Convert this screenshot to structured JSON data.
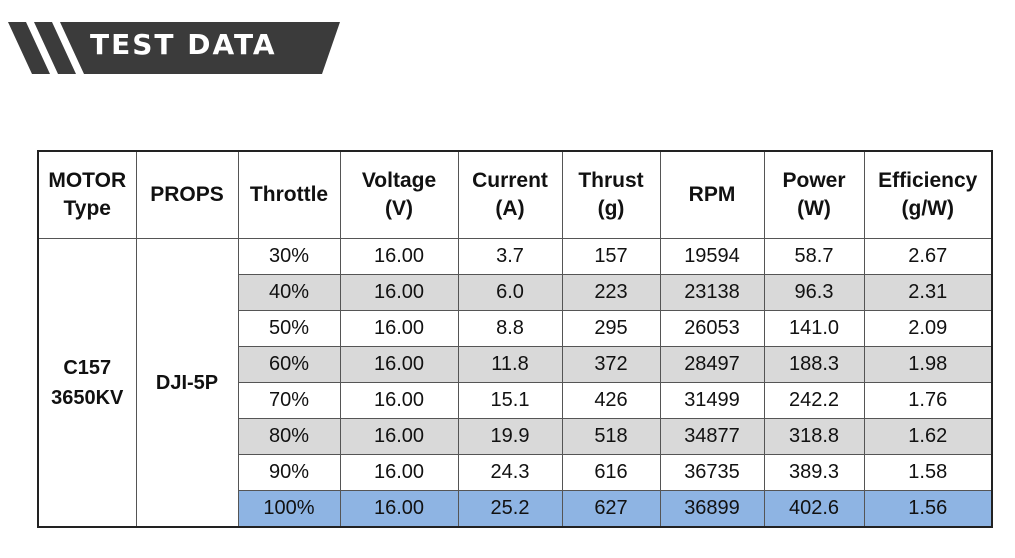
{
  "banner": {
    "title": "TEST DATA"
  },
  "table": {
    "headers": [
      [
        "MOTOR",
        "Type"
      ],
      [
        "PROPS"
      ],
      [
        "Throttle"
      ],
      [
        "Voltage",
        "(V)"
      ],
      [
        "Current",
        "(A)"
      ],
      [
        "Thrust",
        "(g)"
      ],
      [
        "RPM"
      ],
      [
        "Power",
        "(W)"
      ],
      [
        "Efficiency",
        "(g/W)"
      ]
    ],
    "motor": [
      "C157",
      "3650KV"
    ],
    "props": "DJI-5P",
    "rows": [
      [
        "30%",
        "16.00",
        "3.7",
        "157",
        "19594",
        "58.7",
        "2.67"
      ],
      [
        "40%",
        "16.00",
        "6.0",
        "223",
        "23138",
        "96.3",
        "2.31"
      ],
      [
        "50%",
        "16.00",
        "8.8",
        "295",
        "26053",
        "141.0",
        "2.09"
      ],
      [
        "60%",
        "16.00",
        "11.8",
        "372",
        "28497",
        "188.3",
        "1.98"
      ],
      [
        "70%",
        "16.00",
        "15.1",
        "426",
        "31499",
        "242.2",
        "1.76"
      ],
      [
        "80%",
        "16.00",
        "19.9",
        "518",
        "34877",
        "318.8",
        "1.62"
      ],
      [
        "90%",
        "16.00",
        "24.3",
        "616",
        "36735",
        "389.3",
        "1.58"
      ],
      [
        "100%",
        "16.00",
        "25.2",
        "627",
        "36899",
        "402.6",
        "1.56"
      ]
    ],
    "shaded_rows": [
      1,
      3,
      5
    ],
    "highlight_row": 7
  },
  "colors": {
    "banner_dark": "#3b3b3b",
    "row_shade": "#d9d9d9",
    "row_highlight": "#8eb4e3"
  }
}
